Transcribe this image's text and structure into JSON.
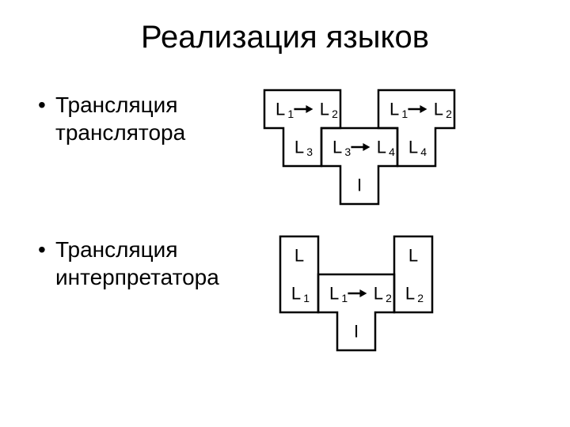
{
  "title": "Реализация языков",
  "bullets": {
    "b1_line1": "Трансляция",
    "b1_line2": "транслятора",
    "b2_line1": "Трансляция",
    "b2_line2": "интерпретатора"
  },
  "diagram": {
    "stroke": "#000000",
    "stroke_width": 2.5,
    "font_size_main": 22,
    "font_size_sub": 14,
    "labels": {
      "L": "L",
      "L1": "1",
      "L2": "2",
      "L3": "3",
      "L4": "4",
      "I": "I"
    },
    "cell": 48,
    "row1": {
      "tA": {
        "top": "L1 → L2",
        "bottom": "L3"
      },
      "tB": {
        "top": "L3 → L4",
        "bottom": "I"
      },
      "tC": {
        "top": "L1 → L2",
        "bottom": "L4"
      }
    },
    "row2": {
      "iA": {
        "top": "L",
        "bottom": "L1"
      },
      "tB": {
        "top": "L1 → L2",
        "bottom": "I"
      },
      "iC": {
        "top": "L",
        "bottom": "L2"
      }
    }
  },
  "colors": {
    "background": "#ffffff",
    "text": "#000000"
  }
}
